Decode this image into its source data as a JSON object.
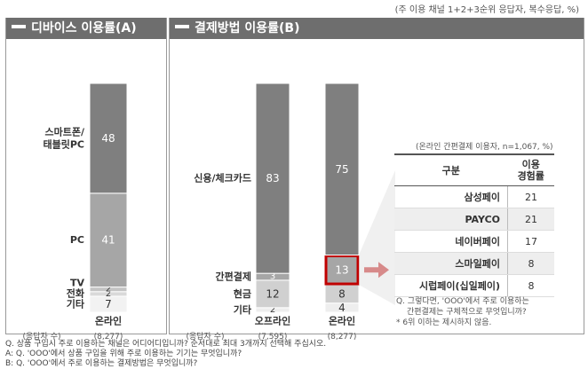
{
  "top_note": "(주 이용 채널 1+2+3순위 응답자, 복수응답, %)",
  "panel_a": {
    "title": "디바이스 이용률(A)"
  },
  "panel_b": {
    "title": "결제방법 이용률(B)"
  },
  "chart_data": [
    {
      "type": "bar",
      "title": "디바이스 이용률(A)",
      "stacked": true,
      "categories": [
        "온라인"
      ],
      "respondents_label": "(응답자 수)",
      "respondents": [
        "(8,277)"
      ],
      "series": [
        {
          "name": "기타",
          "values": [
            7
          ],
          "color": "#f2f2f2",
          "text_color": "#333333"
        },
        {
          "name": "전화",
          "values": [
            2
          ],
          "color": "#d9d9d9",
          "text_color": "#333333"
        },
        {
          "name": "TV",
          "values": [
            2
          ],
          "color": "#c4c4c4",
          "text_color": "#333333"
        },
        {
          "name": "PC",
          "values": [
            41
          ],
          "color": "#a6a6a6",
          "text_color": "#ffffff"
        },
        {
          "name": "스마트폰/\n태블릿PC",
          "values": [
            48
          ],
          "color": "#7f7f7f",
          "text_color": "#ffffff"
        }
      ]
    },
    {
      "type": "bar",
      "title": "결제방법 이용률(B)",
      "stacked": true,
      "categories": [
        "오프라인",
        "온라인"
      ],
      "respondents_label": "(응답자 수)",
      "respondents": [
        "(7,595)",
        "(8,277)"
      ],
      "series": [
        {
          "name": "기타",
          "values": [
            2,
            4
          ],
          "color": "#eeeeee",
          "text_color": "#333333"
        },
        {
          "name": "현금",
          "values": [
            12,
            8
          ],
          "color": "#d0d0d0",
          "text_color": "#333333"
        },
        {
          "name": "간편결제",
          "values": [
            3,
            13
          ],
          "color": "#a6a6a6",
          "text_color": "#ffffff"
        },
        {
          "name": "신용/체크카드",
          "values": [
            83,
            75
          ],
          "color": "#7f7f7f",
          "text_color": "#ffffff"
        }
      ],
      "highlight": {
        "series": "간편결제",
        "category": "온라인",
        "color": "#c00000"
      }
    },
    {
      "type": "table",
      "caption": "(온라인 간편결제 이용자, n=1,067, %)",
      "columns": [
        "구분",
        "이용\n경험률"
      ],
      "rows": [
        {
          "name": "삼성페이",
          "value": "21"
        },
        {
          "name": "PAYCO",
          "value": "21"
        },
        {
          "name": "네이버페이",
          "value": "17"
        },
        {
          "name": "스마일페이",
          "value": "8"
        },
        {
          "name": "시럽페이(십일페이)",
          "value": "8"
        }
      ]
    }
  ],
  "question_notes": [
    "Q. 그렇다면, 'OOO'에서 주로 이용하는",
    "간편결제는 구체적으로 무엇입니까?",
    "* 6위 이하는 제시하지 않음."
  ],
  "footer": [
    "Q. 상품 구입시 주로 이용하는 채널은 어디어디입니까? 순서대로 최대 3개까지 선택해 주십시오.",
    "A: Q. 'OOO'에서 상품 구입을 위해 주로 이용하는 기기는 무엇입니까?",
    "B: Q. 'OOO'에서 주로 이용하는 결제방법은 무엇입니까?"
  ],
  "colors": {
    "header": "#6e6e6e",
    "highlight": "#c00000",
    "border": "#9a9a9a"
  }
}
